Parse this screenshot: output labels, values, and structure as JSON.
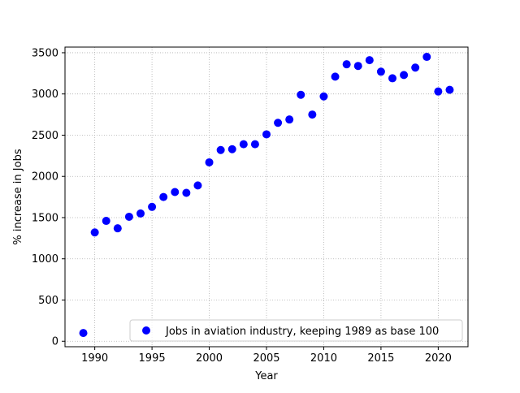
{
  "chart_data": {
    "type": "scatter",
    "title": "",
    "xlabel": "Year",
    "ylabel": "% increase in Jobs",
    "xlim": [
      1987.4,
      2022.6
    ],
    "ylim": [
      -66.5,
      3568.5
    ],
    "xticks": [
      1990,
      1995,
      2000,
      2005,
      2010,
      2015,
      2020
    ],
    "yticks": [
      0,
      500,
      1000,
      1500,
      2000,
      2500,
      3000,
      3500
    ],
    "grid": true,
    "legend_position": "lower-right",
    "color": "#0000ff",
    "series": [
      {
        "name": "Jobs in aviation industry, keeping 1989 as base 100",
        "x": [
          1989,
          1990,
          1991,
          1992,
          1993,
          1994,
          1995,
          1996,
          1997,
          1998,
          1999,
          2000,
          2001,
          2002,
          2003,
          2004,
          2005,
          2006,
          2007,
          2008,
          2009,
          2010,
          2011,
          2012,
          2013,
          2014,
          2015,
          2016,
          2017,
          2018,
          2019,
          2020,
          2021
        ],
        "y": [
          100,
          1320,
          1460,
          1370,
          1510,
          1550,
          1630,
          1750,
          1810,
          1800,
          1890,
          2170,
          2320,
          2330,
          2390,
          2390,
          2510,
          2650,
          2690,
          2990,
          2750,
          2970,
          3210,
          3360,
          3340,
          3410,
          3270,
          3190,
          3230,
          3320,
          3450,
          3030,
          3050
        ]
      }
    ]
  }
}
